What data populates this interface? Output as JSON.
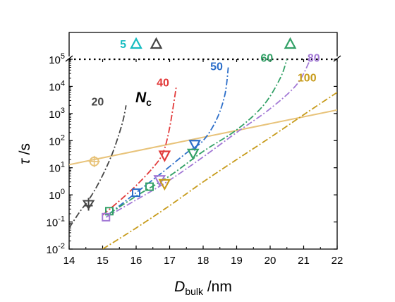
{
  "chart_data": {
    "type": "line",
    "xlabel_main": "D",
    "xlabel_sub": "bulk",
    "xlabel_unit": " /nm",
    "ylabel_main": "τ",
    "ylabel_unit": " /s",
    "xlim": [
      14,
      22
    ],
    "ylim_log10": [
      -2,
      5
    ],
    "yscale": "log",
    "x_ticks": [
      "14",
      "15",
      "16",
      "17",
      "18",
      "19",
      "20",
      "21",
      "22"
    ],
    "y_ticks": [
      {
        "exp": -2,
        "label": "10",
        "sup": "-2"
      },
      {
        "exp": -1,
        "label": "10",
        "sup": "-1"
      },
      {
        "exp": 0,
        "label": "10",
        "sup": "0"
      },
      {
        "exp": 1,
        "label": "10",
        "sup": "1"
      },
      {
        "exp": 2,
        "label": "10",
        "sup": "2"
      },
      {
        "exp": 3,
        "label": "10",
        "sup": "3"
      },
      {
        "exp": 4,
        "label": "10",
        "sup": "4"
      },
      {
        "exp": 5,
        "label": "10",
        "sup": "5"
      }
    ],
    "annotation": {
      "main": "N",
      "sub": "c"
    },
    "broken_axis": true,
    "reference_line": {
      "color": "#E8C37A",
      "x": [
        14,
        22
      ],
      "tau": [
        13,
        1350
      ]
    },
    "reference_points": [
      {
        "x": 14.75,
        "tau": 17,
        "marker": "circle-cross",
        "color": "#E8C37A"
      }
    ],
    "series": [
      {
        "name": "20",
        "color": "#454545",
        "x": [
          14.0,
          14.3,
          14.6,
          14.9,
          15.2,
          15.4,
          15.6,
          15.7
        ],
        "tau": [
          0.06,
          0.22,
          0.7,
          3,
          18,
          80,
          500,
          2000
        ],
        "label_x": 14.85,
        "label_tau": 2000,
        "markers": [
          {
            "x": 14.58,
            "tau": 0.45,
            "shape": "star"
          }
        ]
      },
      {
        "name": "40",
        "color": "#E23B3B",
        "x": [
          15.0,
          15.5,
          16.0,
          16.5,
          16.8,
          17.0,
          17.2
        ],
        "tau": [
          0.18,
          0.6,
          2.2,
          10,
          35,
          300,
          10000
        ],
        "label_x": 16.8,
        "label_tau": 10000,
        "markers": [
          {
            "x": 16.85,
            "tau": 28,
            "shape": "triangle-down"
          }
        ]
      },
      {
        "name": "50",
        "color": "#2C6EC9",
        "x": [
          15.2,
          16.0,
          16.8,
          17.5,
          18.0,
          18.4,
          18.65,
          18.75
        ],
        "tau": [
          0.2,
          1.2,
          7,
          35,
          100,
          600,
          5000,
          50000
        ],
        "label_x": 18.4,
        "label_tau": 40000,
        "markers": [
          {
            "x": 16.0,
            "tau": 1.2,
            "shape": "square"
          },
          {
            "x": 17.75,
            "tau": 70,
            "shape": "triangle-down"
          }
        ]
      },
      {
        "name": "60",
        "color": "#33A167",
        "x": [
          15.2,
          16.0,
          17.0,
          18.0,
          19.0,
          19.8,
          20.3,
          20.5
        ],
        "tau": [
          0.2,
          0.9,
          5,
          40,
          250,
          2000,
          20000,
          100000
        ],
        "label_x": 19.9,
        "label_tau": 80000,
        "markers": [
          {
            "x": 15.2,
            "tau": 0.25,
            "shape": "square"
          },
          {
            "x": 16.4,
            "tau": 2,
            "shape": "square"
          },
          {
            "x": 17.7,
            "tau": 33,
            "shape": "triangle-down"
          }
        ]
      },
      {
        "name": "80",
        "color": "#A379D6",
        "x": [
          15.1,
          16.0,
          17.0,
          18.0,
          19.0,
          20.0,
          20.8,
          21.2
        ],
        "tau": [
          0.15,
          0.65,
          3.5,
          25,
          200,
          1500,
          12000,
          100000
        ],
        "label_x": 21.3,
        "label_tau": 80000,
        "markers": [
          {
            "x": 15.1,
            "tau": 0.15,
            "shape": "square"
          },
          {
            "x": 16.7,
            "tau": 3.5,
            "shape": "triangle-down"
          }
        ]
      },
      {
        "name": "100",
        "color": "#C79B1B",
        "x": [
          15.0,
          16.0,
          17.0,
          18.0,
          19.0,
          20.0,
          21.0,
          22.0
        ],
        "tau": [
          0.01,
          0.06,
          0.4,
          3,
          20,
          130,
          900,
          6000
        ],
        "label_x": 21.1,
        "label_tau": 15000,
        "markers": [
          {
            "x": 16.85,
            "tau": 2.5,
            "shape": "triangle-down"
          }
        ]
      }
    ],
    "top_panel": [
      {
        "label": "5",
        "label_color": "#17BDC1",
        "x": 16.0,
        "marker_color": "#17BDC1"
      },
      {
        "x": 16.6,
        "marker_color": "#454545"
      },
      {
        "x": 20.6,
        "marker_color": "#33A167"
      }
    ]
  }
}
